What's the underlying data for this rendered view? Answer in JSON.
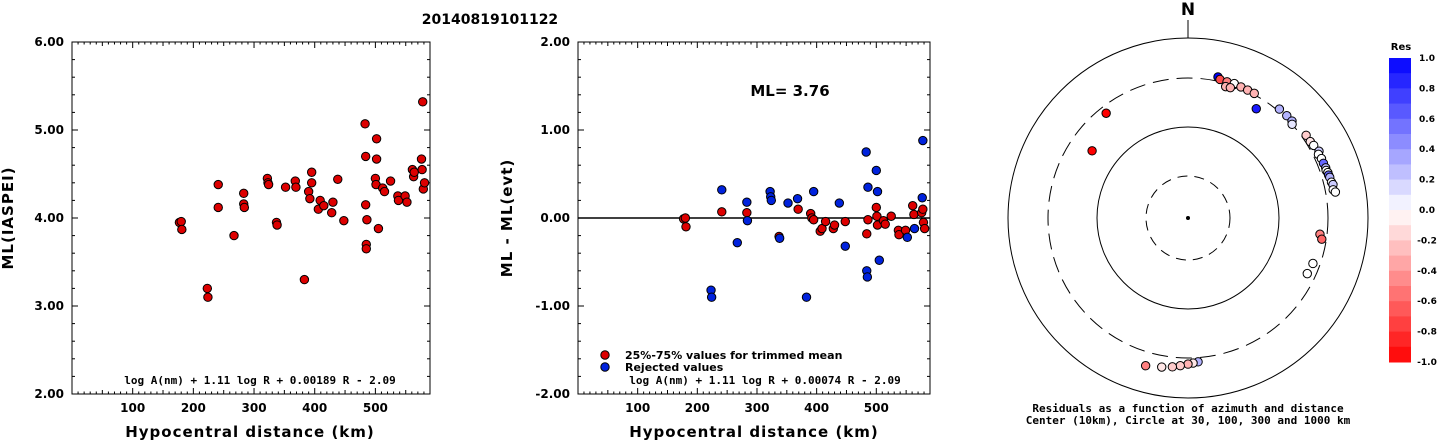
{
  "title": "20140819101122",
  "chart_data": [
    {
      "type": "scatter",
      "title": "20140819101122",
      "xlabel": "Hypocentral distance (km)",
      "ylabel": "ML(IASPEI)",
      "xlim": [
        0,
        590
      ],
      "ylim": [
        2.0,
        6.0
      ],
      "x_ticks": [
        "100",
        "200",
        "300",
        "400",
        "500"
      ],
      "y_ticks": [
        "2.00",
        "3.00",
        "4.00",
        "5.00",
        "6.00"
      ],
      "formula": "log A(nm) + 1.11 log R + 0.00189 R - 2.09",
      "series": [
        {
          "color": "#dd0000",
          "points": [
            [
              177,
              3.95
            ],
            [
              180,
              3.96
            ],
            [
              181,
              3.87
            ],
            [
              223,
              3.2
            ],
            [
              224,
              3.1
            ],
            [
              241,
              4.38
            ],
            [
              241,
              4.12
            ],
            [
              267,
              3.8
            ],
            [
              283,
              4.28
            ],
            [
              283,
              4.16
            ],
            [
              284,
              4.12
            ],
            [
              322,
              4.45
            ],
            [
              323,
              4.4
            ],
            [
              324,
              4.38
            ],
            [
              337,
              3.95
            ],
            [
              338,
              3.92
            ],
            [
              352,
              4.35
            ],
            [
              368,
              4.42
            ],
            [
              369,
              4.35
            ],
            [
              383,
              3.3
            ],
            [
              390,
              4.3
            ],
            [
              392,
              4.22
            ],
            [
              395,
              4.52
            ],
            [
              395,
              4.4
            ],
            [
              406,
              4.1
            ],
            [
              409,
              4.2
            ],
            [
              415,
              4.14
            ],
            [
              428,
              4.06
            ],
            [
              430,
              4.18
            ],
            [
              438,
              4.44
            ],
            [
              448,
              3.97
            ],
            [
              483,
              5.07
            ],
            [
              484,
              4.15
            ],
            [
              484,
              4.7
            ],
            [
              485,
              3.7
            ],
            [
              485,
              3.65
            ],
            [
              486,
              3.98
            ],
            [
              500,
              4.45
            ],
            [
              501,
              4.38
            ],
            [
              502,
              4.9
            ],
            [
              502,
              4.67
            ],
            [
              505,
              3.88
            ],
            [
              512,
              4.34
            ],
            [
              515,
              4.3
            ],
            [
              525,
              4.42
            ],
            [
              537,
              4.25
            ],
            [
              538,
              4.2
            ],
            [
              549,
              4.25
            ],
            [
              552,
              4.18
            ],
            [
              561,
              4.55
            ],
            [
              563,
              4.47
            ],
            [
              564,
              4.52
            ],
            [
              576,
              4.67
            ],
            [
              577,
              4.55
            ],
            [
              578,
              5.32
            ],
            [
              579,
              4.33
            ],
            [
              581,
              4.4
            ]
          ]
        }
      ]
    },
    {
      "type": "scatter",
      "annotation": "ML= 3.76",
      "xlabel": "Hypocentral distance (km)",
      "ylabel": "ML - ML(evt)",
      "xlim": [
        0,
        590
      ],
      "ylim": [
        -2.0,
        2.0
      ],
      "x_ticks": [
        "100",
        "200",
        "300",
        "400",
        "500"
      ],
      "y_ticks": [
        "-2.00",
        "-1.00",
        "0.00",
        "1.00",
        "2.00"
      ],
      "formula": "log A(nm) + 1.11 log R + 0.00074 R - 2.09",
      "legend_position": "bottom-left",
      "series": [
        {
          "name": "25%-75% values for trimmed mean",
          "color": "#dd0000",
          "points": [
            [
              177,
              -0.01
            ],
            [
              180,
              0.0
            ],
            [
              181,
              -0.1
            ],
            [
              241,
              0.07
            ],
            [
              283,
              0.06
            ],
            [
              337,
              -0.21
            ],
            [
              369,
              0.1
            ],
            [
              390,
              0.05
            ],
            [
              392,
              0.0
            ],
            [
              395,
              -0.02
            ],
            [
              406,
              -0.15
            ],
            [
              409,
              -0.12
            ],
            [
              415,
              -0.04
            ],
            [
              428,
              -0.12
            ],
            [
              430,
              -0.08
            ],
            [
              448,
              -0.04
            ],
            [
              484,
              -0.18
            ],
            [
              486,
              -0.02
            ],
            [
              500,
              0.12
            ],
            [
              501,
              0.02
            ],
            [
              502,
              -0.08
            ],
            [
              512,
              -0.03
            ],
            [
              515,
              -0.07
            ],
            [
              525,
              0.02
            ],
            [
              537,
              -0.14
            ],
            [
              538,
              -0.19
            ],
            [
              549,
              -0.14
            ],
            [
              561,
              0.14
            ],
            [
              563,
              0.04
            ],
            [
              576,
              0.06
            ],
            [
              578,
              0.1
            ],
            [
              579,
              -0.05
            ],
            [
              581,
              -0.12
            ]
          ]
        },
        {
          "name": "Rejected values",
          "color": "#0022dd",
          "points": [
            [
              223,
              -0.82
            ],
            [
              224,
              -0.9
            ],
            [
              241,
              0.32
            ],
            [
              267,
              -0.28
            ],
            [
              283,
              0.18
            ],
            [
              284,
              -0.03
            ],
            [
              322,
              0.3
            ],
            [
              323,
              0.24
            ],
            [
              324,
              0.2
            ],
            [
              338,
              -0.23
            ],
            [
              352,
              0.17
            ],
            [
              368,
              0.22
            ],
            [
              383,
              -0.9
            ],
            [
              395,
              0.3
            ],
            [
              438,
              0.17
            ],
            [
              448,
              -0.32
            ],
            [
              483,
              0.75
            ],
            [
              484,
              -0.6
            ],
            [
              485,
              -0.67
            ],
            [
              486,
              0.35
            ],
            [
              500,
              0.54
            ],
            [
              502,
              0.3
            ],
            [
              505,
              -0.48
            ],
            [
              552,
              -0.22
            ],
            [
              564,
              -0.12
            ],
            [
              577,
              0.23
            ],
            [
              578,
              0.88
            ]
          ]
        }
      ]
    },
    {
      "type": "scatter",
      "subtype": "polar-azimuth-distance",
      "north_label": "N",
      "caption_line1": "Residuals as a function of azimuth and distance",
      "caption_line2": "Center (10km), Circle at 30, 100, 300 and 1000 km",
      "colorbar_title": "Res",
      "colorbar_ticks": [
        "1.0",
        "0.8",
        "0.6",
        "0.4",
        "0.2",
        "0.0",
        "-0.2",
        "-0.4",
        "-0.6",
        "-0.8",
        "-1.0"
      ],
      "points_az_dist_res": [
        [
          12,
          400,
          1.0
        ],
        [
          13,
          380,
          -0.7
        ],
        [
          16,
          375,
          -0.5
        ],
        [
          19,
          370,
          0.0
        ],
        [
          19,
          380,
          0.0
        ],
        [
          22,
          372,
          -0.3
        ],
        [
          25,
          370,
          -0.3
        ],
        [
          28,
          370,
          -0.3
        ],
        [
          16,
          330,
          -0.3
        ],
        [
          18,
          333,
          -0.3
        ],
        [
          32,
          270,
          0.9
        ],
        [
          40,
          380,
          0.3
        ],
        [
          44,
          380,
          0.3
        ],
        [
          47,
          380,
          0.3
        ],
        [
          48,
          360,
          0.1
        ],
        [
          55,
          400,
          -0.2
        ],
        [
          58,
          400,
          -0.1
        ],
        [
          60,
          410,
          0.0
        ],
        [
          63,
          430,
          0.2
        ],
        [
          64,
          410,
          0.0
        ],
        [
          66,
          420,
          0.0
        ],
        [
          68,
          420,
          0.6
        ],
        [
          70,
          425,
          0.3
        ],
        [
          71,
          420,
          0.0
        ],
        [
          72,
          430,
          0.0
        ],
        [
          73,
          430,
          0.6
        ],
        [
          74,
          435,
          0.3
        ],
        [
          76,
          440,
          0.0
        ],
        [
          77,
          450,
          0.2
        ],
        [
          79,
          440,
          0.0
        ],
        [
          80,
          460,
          0.0
        ],
        [
          97,
          300,
          -0.5
        ],
        [
          99,
          320,
          -0.6
        ],
        [
          110,
          300,
          0.0
        ],
        [
          115,
          290,
          0.0
        ],
        [
          176,
          400,
          0.3
        ],
        [
          178,
          410,
          -0.1
        ],
        [
          180,
          420,
          -0.3
        ],
        [
          183,
          440,
          -0.2
        ],
        [
          186,
          460,
          -0.2
        ],
        [
          190,
          480,
          -0.1
        ],
        [
          196,
          510,
          -0.5
        ],
        [
          305,
          200,
          -1.0
        ],
        [
          322,
          300,
          -1.0
        ]
      ]
    }
  ]
}
